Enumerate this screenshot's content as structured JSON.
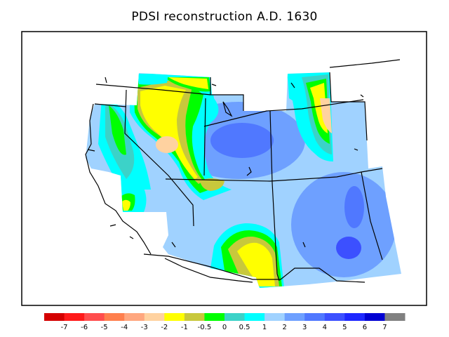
{
  "title": "PDSI reconstruction A.D. 1630",
  "legend": {
    "colors": [
      "#d40000",
      "#ff1a1a",
      "#ff4d4d",
      "#ff7f4d",
      "#ffa77f",
      "#ffd2a0",
      "#ffff00",
      "#c8c83c",
      "#00ff00",
      "#3cd2c8",
      "#00ffff",
      "#a0d2ff",
      "#6ea0ff",
      "#5078ff",
      "#3c50ff",
      "#1e28ff",
      "#0000d2",
      "#808080"
    ],
    "labels": [
      "-7",
      "-6",
      "-5",
      "-4",
      "-3",
      "-2",
      "-1",
      "-0.5",
      "0",
      "0.5",
      "1",
      "2",
      "3",
      "4",
      "5",
      "6",
      "7"
    ]
  }
}
